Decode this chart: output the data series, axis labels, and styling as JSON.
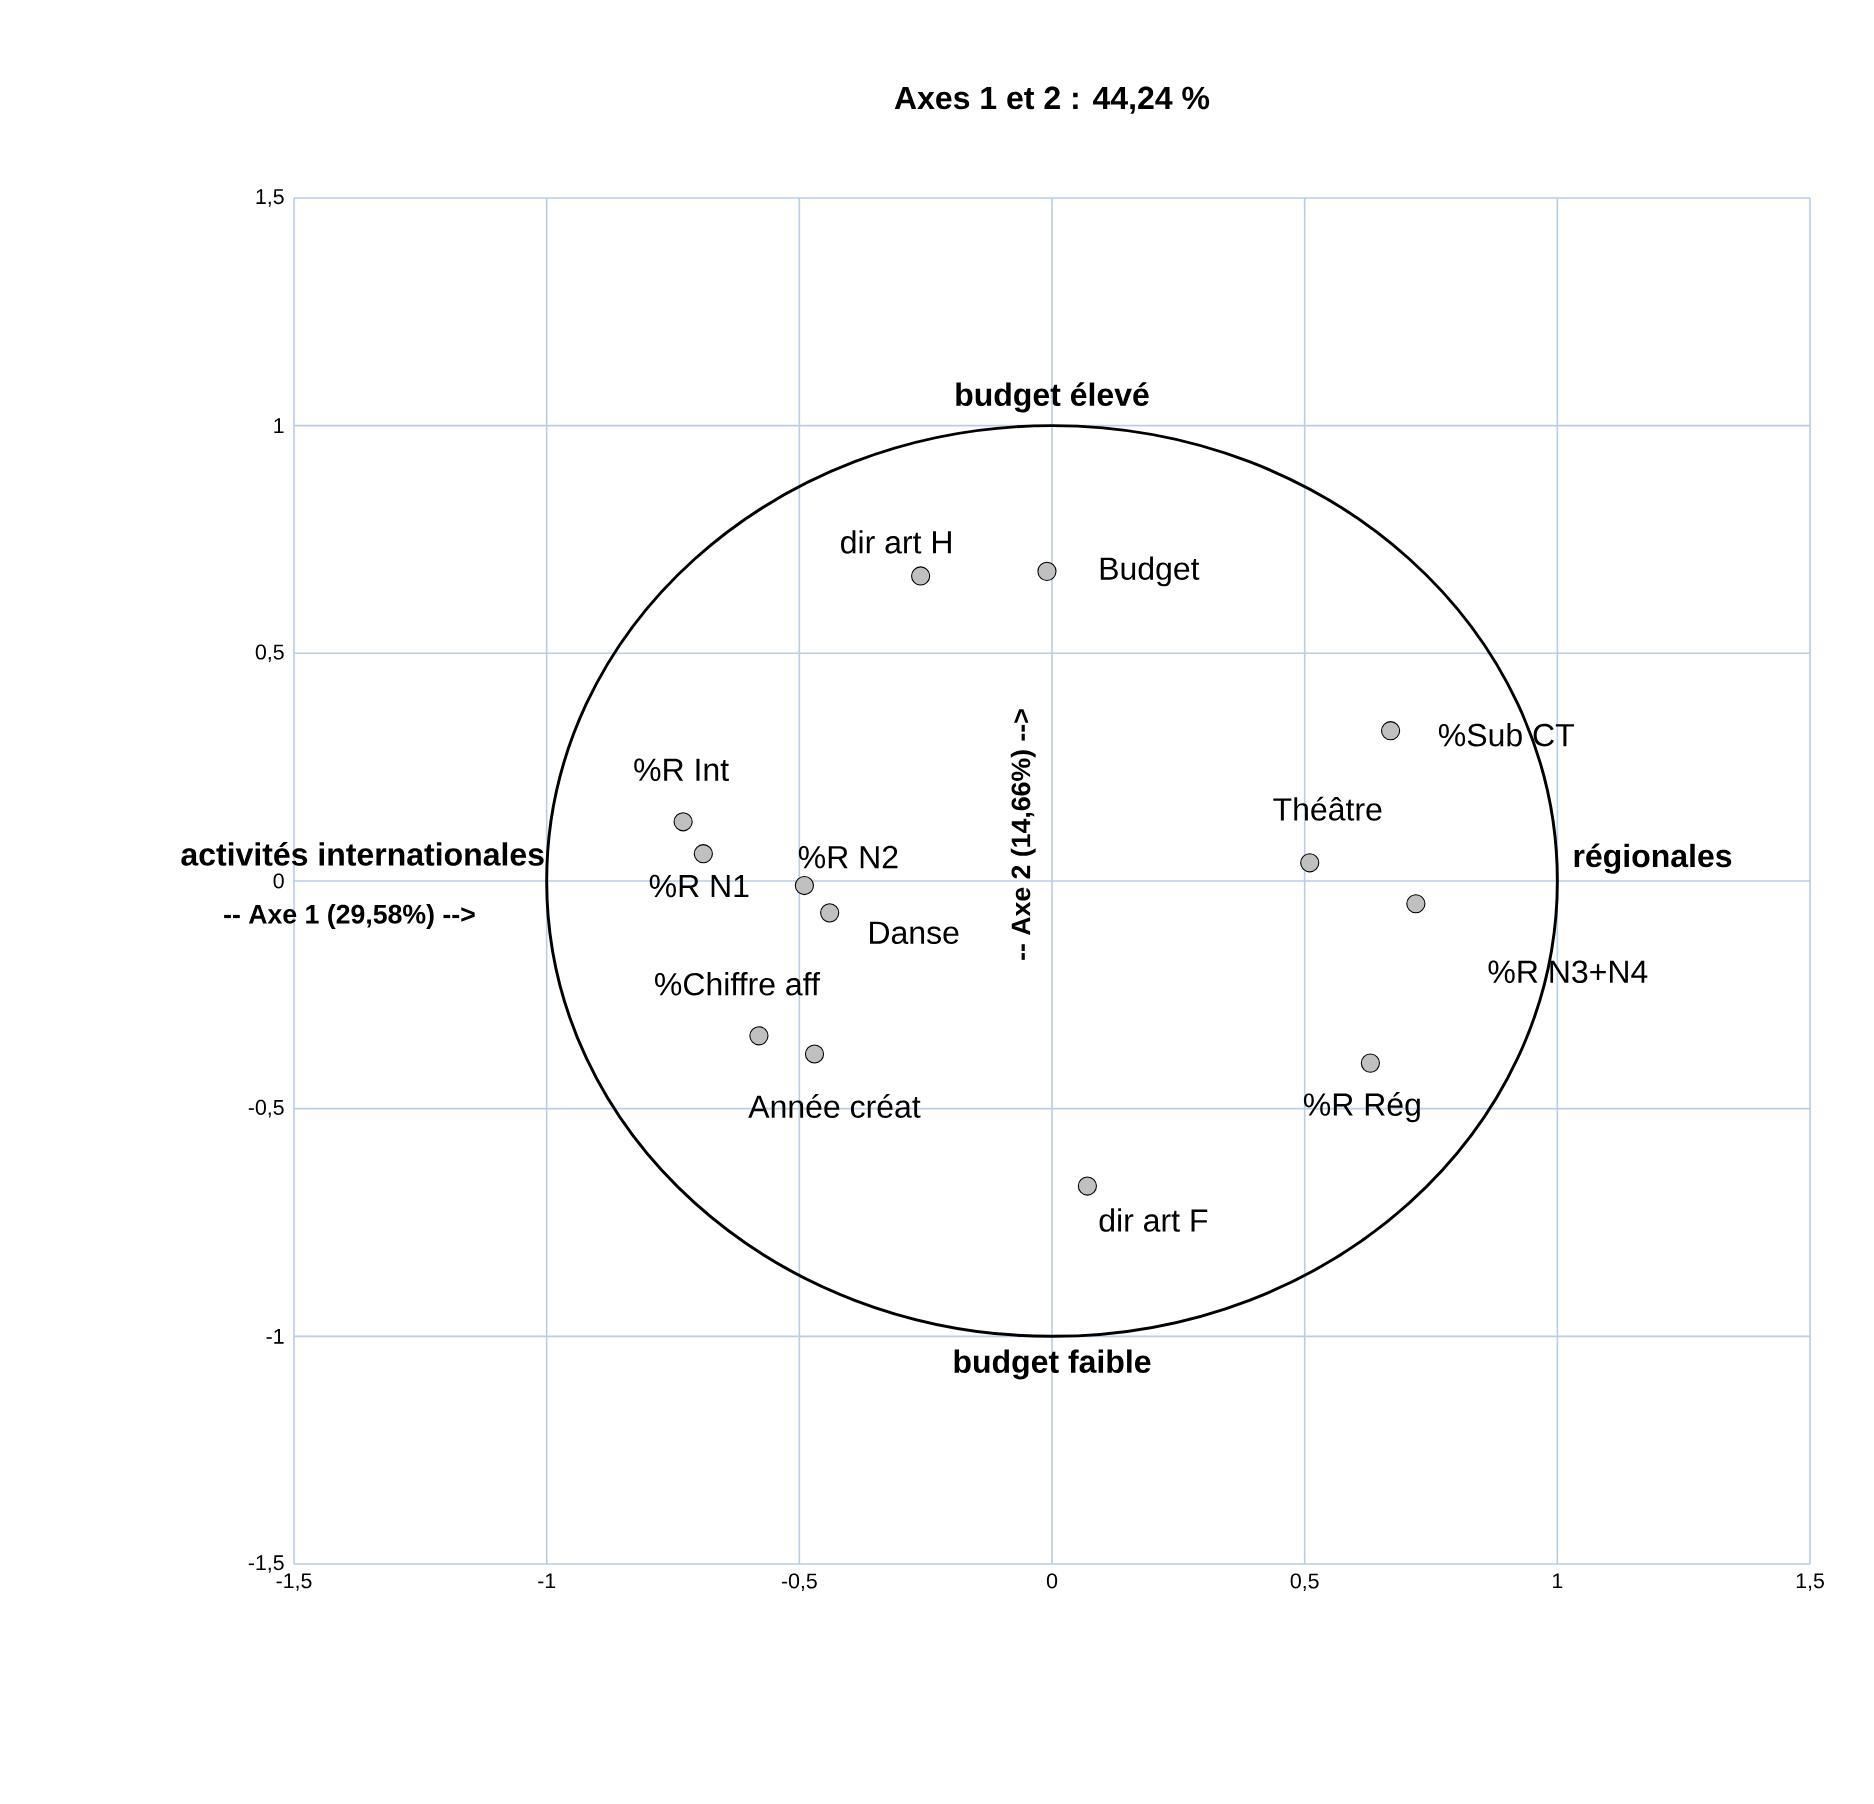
{
  "chart_data": {
    "type": "scatter",
    "title": "Axes 1 et 2 : 44,24 %",
    "xlabel": "-- Axe 1 (29,58%) -->",
    "ylabel": "-- Axe 2 (14,66%) -->",
    "xlim": [
      -1.5,
      1.5
    ],
    "ylim": [
      -1.5,
      1.5
    ],
    "xticks": [
      {
        "value": -1.5,
        "label": "-1,5"
      },
      -1,
      {
        "value": -0.5,
        "label": "-0,5"
      },
      0,
      {
        "value": 0.5,
        "label": "0,5"
      },
      1,
      {
        "value": 1.5,
        "label": "1,5"
      }
    ],
    "yticks": [
      {
        "value": -1.5,
        "label": "-1,5"
      },
      -1,
      {
        "value": -0.5,
        "label": "-0,5"
      },
      0,
      {
        "value": 0.5,
        "label": "0,5"
      },
      1,
      {
        "value": 1.5,
        "label": "1,5"
      }
    ],
    "grid": true,
    "series": [
      {
        "color": "#c0c0c0",
        "x": [
          -0.26,
          -0.01,
          0.67,
          0.51,
          0.72,
          0.63,
          0.07,
          -0.73,
          -0.69,
          -0.49,
          -0.44,
          -0.58,
          -0.47
        ],
        "values": [
          0.67,
          0.68,
          0.33,
          0.04,
          -0.05,
          -0.4,
          -0.67,
          0.13,
          0.06,
          -0.01,
          -0.07,
          -0.34,
          -0.38
        ]
      }
    ],
    "annotations": [
      "budget élevé",
      "budget faible",
      "activités internationales",
      "régionales",
      {
        "text": "dir art H",
        "x": -0.26,
        "y": 0.67
      },
      {
        "text": "Budget",
        "x": -0.01,
        "y": 0.68
      },
      {
        "text": "%Sub CT",
        "x": 0.67,
        "y": 0.33
      },
      {
        "text": "Théâtre",
        "x": 0.51,
        "y": 0.04
      },
      {
        "text": "%R N3+N4",
        "x": 0.72,
        "y": -0.05
      },
      {
        "text": "%R Rég",
        "x": 0.63,
        "y": -0.4
      },
      {
        "text": "dir art F",
        "x": 0.07,
        "y": -0.67
      },
      {
        "text": "%R Int",
        "x": -0.73,
        "y": 0.13
      },
      {
        "text": "%R N1",
        "x": -0.69,
        "y": 0.06
      },
      {
        "text": "%R N2",
        "x": -0.49,
        "y": -0.01
      },
      {
        "text": "Danse",
        "x": -0.44,
        "y": -0.07
      },
      {
        "text": "%Chiffre aff",
        "x": -0.58,
        "y": -0.34
      },
      {
        "text": "Année créat",
        "x": -0.47,
        "y": -0.38
      }
    ]
  }
}
